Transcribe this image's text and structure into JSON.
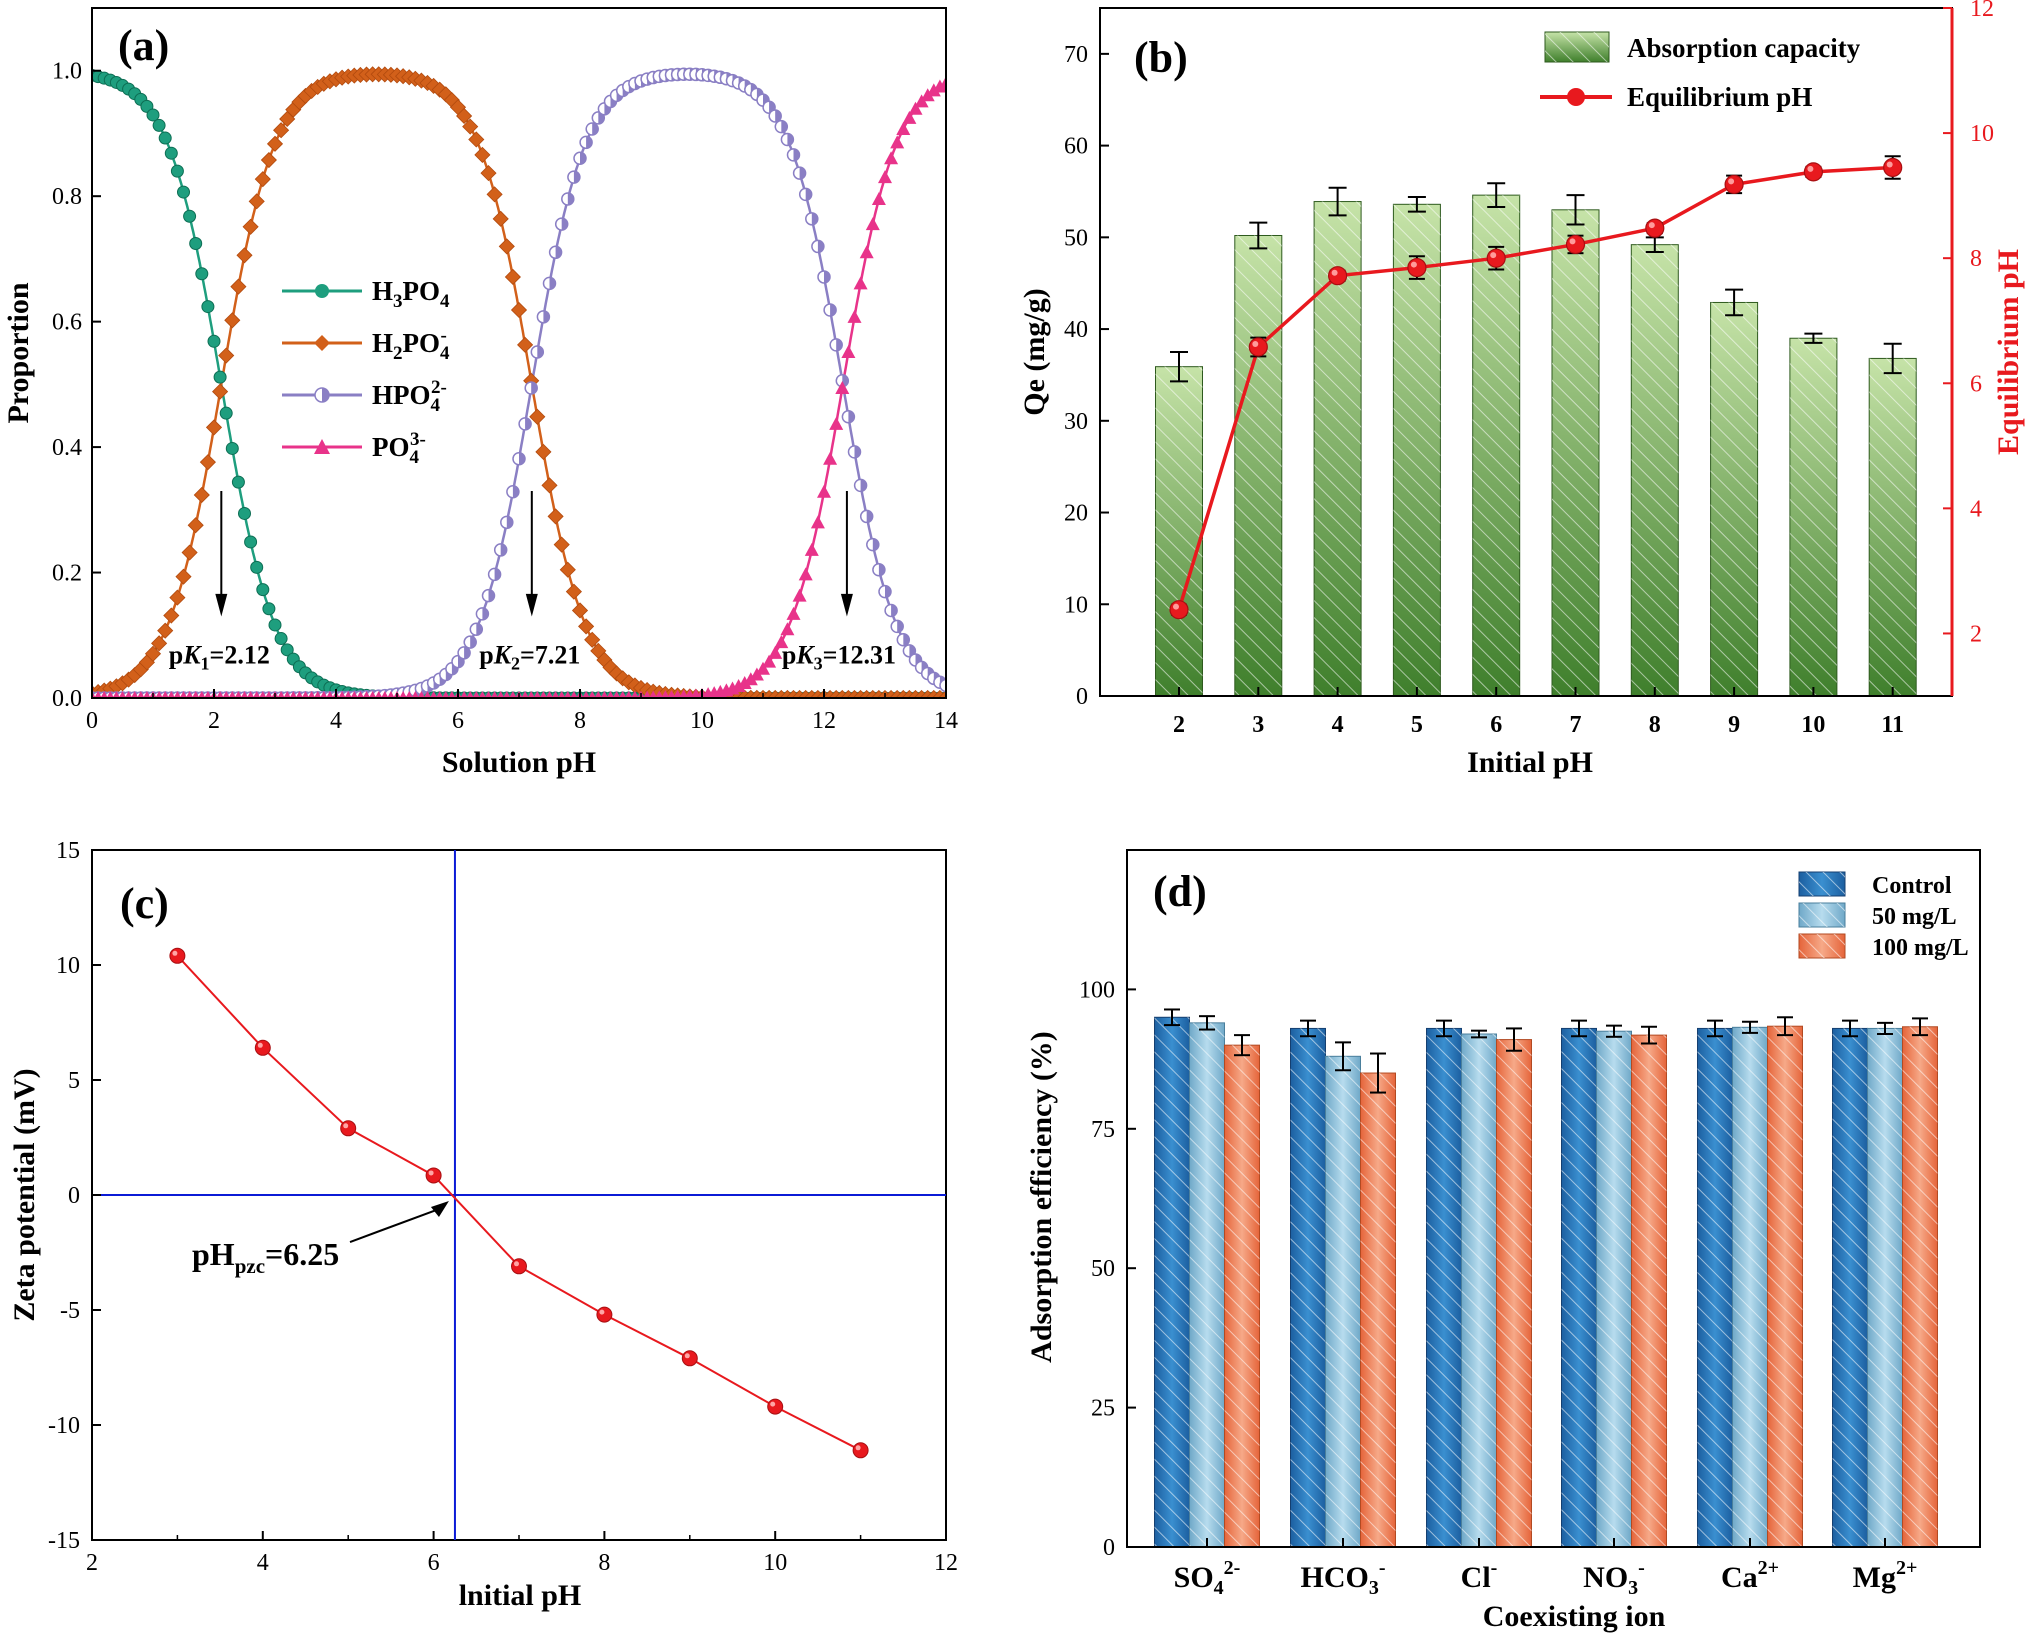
{
  "chart_data": [
    {
      "id": "a",
      "type": "line",
      "panel_label": "(a)",
      "xlabel": "Solution pH",
      "ylabel": "Proportion",
      "xlim": [
        0,
        14
      ],
      "ylim": [
        0,
        1.1
      ],
      "xticks": [
        "0",
        "2",
        "4",
        "6",
        "8",
        "10",
        "12",
        "14"
      ],
      "yticks": [
        "0.0",
        "0.2",
        "0.4",
        "0.6",
        "0.8",
        "1.0"
      ],
      "pKa": [
        2.12,
        7.21,
        12.31
      ],
      "series": [
        {
          "name": "H3PO4",
          "label": "H",
          "sub1": "3",
          "mid": "PO",
          "sub2": "4",
          "sup": "",
          "color": "#1e9e7e",
          "marker": "circle"
        },
        {
          "name": "H2PO4-",
          "label": "H",
          "sub1": "2",
          "mid": "PO",
          "sub2": "4",
          "sup": "-",
          "color": "#d2601a",
          "marker": "diamond"
        },
        {
          "name": "HPO42-",
          "label": "",
          "sub1": "",
          "mid": "HPO",
          "sub2": "4",
          "sup": "2-",
          "color": "#8a7fc4",
          "marker": "halfcircle"
        },
        {
          "name": "PO43-",
          "label": "",
          "sub1": "",
          "mid": "PO",
          "sub2": "4",
          "sup": "3-",
          "color": "#e8338a",
          "marker": "triangle"
        }
      ],
      "annotations": [
        {
          "pre": "p",
          "k": "K",
          "sub": "1",
          "val": "=2.12",
          "x": 2.12
        },
        {
          "pre": "p",
          "k": "K",
          "sub": "2",
          "val": "=7.21",
          "x": 7.21
        },
        {
          "pre": "p",
          "k": "K",
          "sub": "3",
          "val": "=12.31",
          "x": 12.31
        }
      ]
    },
    {
      "id": "b",
      "type": "bar",
      "panel_label": "(b)",
      "xlabel": "Initial pH",
      "ylabel": "Qe (mg/g)",
      "ylabel_right": "Equilibrium pH",
      "categories": [
        "2",
        "3",
        "4",
        "5",
        "6",
        "7",
        "8",
        "9",
        "10",
        "11"
      ],
      "ylim": [
        0,
        75
      ],
      "yticks": [
        "0",
        "10",
        "20",
        "30",
        "40",
        "50",
        "60",
        "70"
      ],
      "ylim_right": [
        1,
        12
      ],
      "yticks_right": [
        "2",
        "4",
        "6",
        "8",
        "10",
        "12"
      ],
      "series": [
        {
          "name": "Absorption capacity",
          "values": [
            35.9,
            50.2,
            53.9,
            53.6,
            54.6,
            53.0,
            49.2,
            42.9,
            39.0,
            36.8
          ],
          "errors": [
            1.6,
            1.4,
            1.5,
            0.8,
            1.3,
            1.6,
            0.8,
            1.4,
            0.5,
            1.6
          ],
          "color": "#5f9e3c"
        },
        {
          "name": "Equilibrium pH",
          "values": [
            2.38,
            6.58,
            7.72,
            7.85,
            8.0,
            8.22,
            8.48,
            9.18,
            9.38,
            9.45
          ],
          "errors": [
            0.08,
            0.15,
            0.08,
            0.18,
            0.18,
            0.14,
            0.08,
            0.14,
            0.08,
            0.18
          ],
          "color": "#e8191e"
        }
      ]
    },
    {
      "id": "c",
      "type": "scatter",
      "panel_label": "(c)",
      "xlabel": "lnitial pH",
      "ylabel": "Zeta potential (mV)",
      "xlim": [
        2,
        12
      ],
      "ylim": [
        -15,
        15
      ],
      "xticks": [
        "2",
        "4",
        "6",
        "8",
        "10",
        "12"
      ],
      "yticks": [
        "-15",
        "-10",
        "-5",
        "0",
        "5",
        "10",
        "15"
      ],
      "x": [
        3,
        4,
        5,
        6,
        7,
        8,
        9,
        10,
        11
      ],
      "y": [
        10.4,
        6.4,
        2.9,
        0.85,
        -3.1,
        -5.2,
        -7.1,
        -9.2,
        -11.1
      ],
      "pzc": 6.25,
      "annotation": {
        "pre": "pH",
        "sub": "pzc",
        "val": "=6.25"
      },
      "color": "#e8191e",
      "guide_color": "#0b1bd6"
    },
    {
      "id": "d",
      "type": "bar",
      "panel_label": "(d)",
      "xlabel": "Coexisting ion",
      "ylabel": "Adsorption efficiency (%)",
      "ylim": [
        0,
        125
      ],
      "yticks": [
        "0",
        "25",
        "50",
        "75",
        "100"
      ],
      "categories": [
        {
          "base": "SO",
          "sub": "4",
          "sup": "2-"
        },
        {
          "base": "HCO",
          "sub": "3",
          "sup": "-"
        },
        {
          "base": "Cl",
          "sub": "",
          "sup": "-"
        },
        {
          "base": "NO",
          "sub": "3",
          "sup": "-"
        },
        {
          "base": "Ca",
          "sub": "",
          "sup": "2+"
        },
        {
          "base": "Mg",
          "sub": "",
          "sup": "2+"
        }
      ],
      "series": [
        {
          "name": "Control",
          "values": [
            95.0,
            93.0,
            93.0,
            93.0,
            93.0,
            93.0
          ],
          "errors": [
            1.4,
            1.4,
            1.4,
            1.4,
            1.4,
            1.4
          ],
          "color": "#2b74b8"
        },
        {
          "name": "50 mg/L",
          "values": [
            94.0,
            88.0,
            92.0,
            92.5,
            93.2,
            93.0
          ],
          "errors": [
            1.2,
            2.5,
            0.6,
            1.0,
            1.0,
            1.0
          ],
          "color": "#8fc1db"
        },
        {
          "name": "100 mg/L",
          "values": [
            90.0,
            85.0,
            91.0,
            91.8,
            93.4,
            93.3
          ],
          "errors": [
            1.8,
            3.5,
            2.0,
            1.5,
            1.6,
            1.5
          ],
          "color": "#ef8a62"
        }
      ]
    }
  ]
}
